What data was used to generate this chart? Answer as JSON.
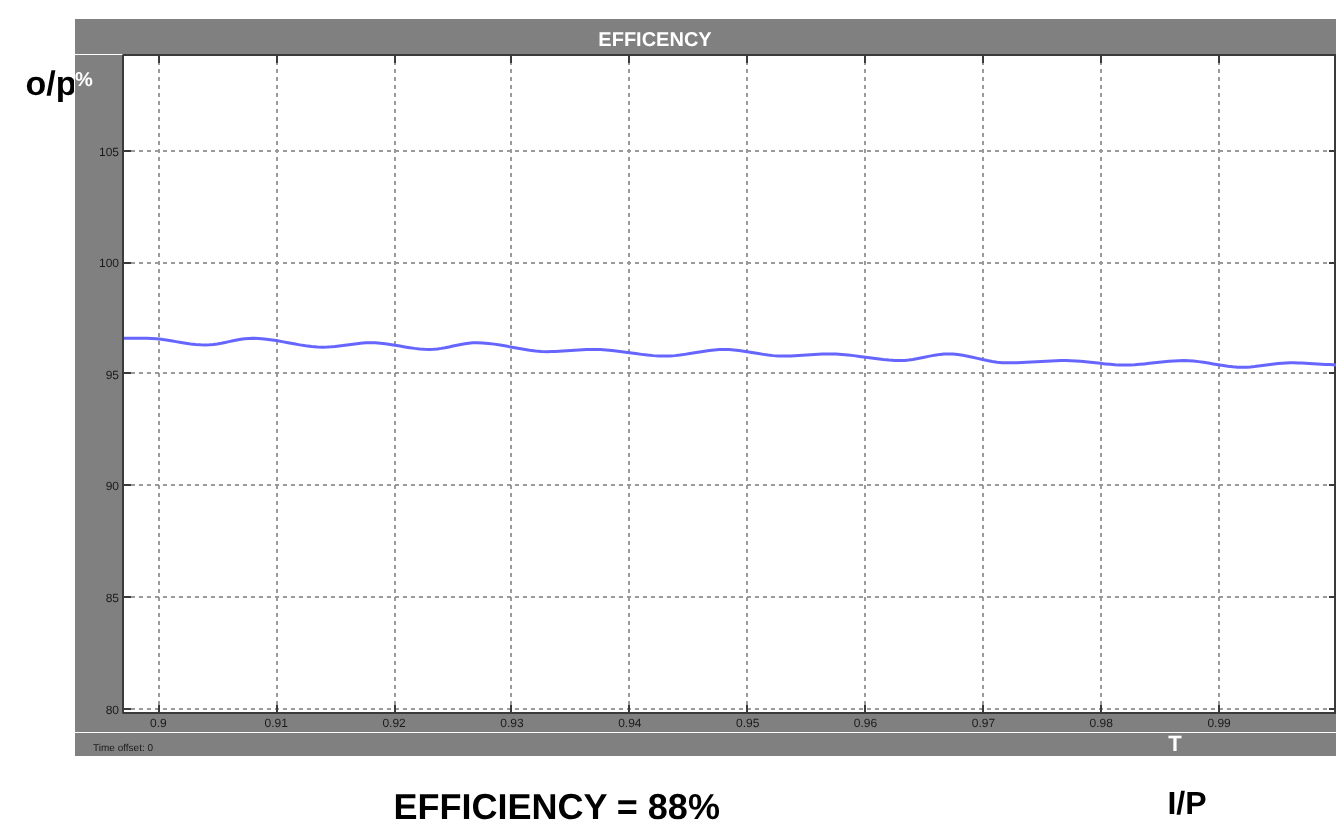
{
  "chart_data": {
    "type": "line",
    "title": "EFFICENCY",
    "xlabel": "T",
    "ylabel": "%",
    "annotations": [
      "o/p",
      "Time offset: 0",
      "EFFICIENCY = 88%",
      "I/P"
    ],
    "x": [
      0.897,
      0.899,
      0.904,
      0.908,
      0.914,
      0.918,
      0.923,
      0.927,
      0.933,
      0.937,
      0.943,
      0.948,
      0.953,
      0.957,
      0.963,
      0.967,
      0.972,
      0.977,
      0.982,
      0.987,
      0.992,
      0.996,
      1.0
    ],
    "series": [
      {
        "color": "#6666ff",
        "values": [
          96.6,
          96.6,
          96.3,
          96.6,
          96.2,
          96.4,
          96.1,
          96.4,
          96.0,
          96.1,
          95.8,
          96.1,
          95.8,
          95.9,
          95.6,
          95.9,
          95.5,
          95.6,
          95.4,
          95.6,
          95.3,
          95.5,
          95.4
        ]
      }
    ],
    "xlim": [
      0.897,
      1.0
    ],
    "ylim": [
      79.8,
      109.3
    ],
    "xticks": [
      0.9,
      0.91,
      0.92,
      0.93,
      0.94,
      0.95,
      0.96,
      0.97,
      0.98,
      0.99
    ],
    "yticks": [
      80,
      85,
      90,
      95,
      100,
      105
    ],
    "grid": true
  }
}
